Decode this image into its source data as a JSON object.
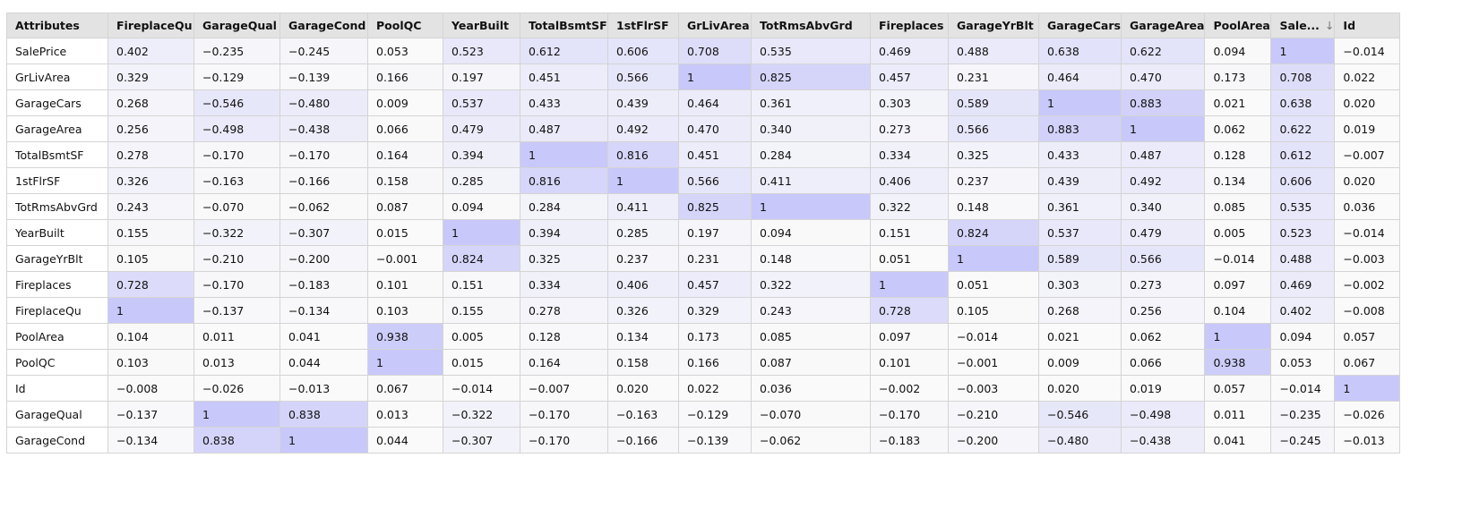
{
  "accent_color": "#c8c8fa",
  "sorted_column_index": 15,
  "sort_icon": "arrow-down-icon",
  "columns": [
    "Attributes",
    "FireplaceQu",
    "GarageQual",
    "GarageCond",
    "PoolQC",
    "YearBuilt",
    "TotalBsmtSF",
    "1stFlrSF",
    "GrLivArea",
    "TotRmsAbvGrd",
    "Fireplaces",
    "GarageYrBlt",
    "GarageCars",
    "GarageArea",
    "PoolArea",
    "Sale...",
    "Id"
  ],
  "sort_arrow_glyph": "↓",
  "rows": [
    {
      "label": "SalePrice",
      "values": [
        "0.402",
        "−0.235",
        "−0.245",
        "0.053",
        "0.523",
        "0.612",
        "0.606",
        "0.708",
        "0.535",
        "0.469",
        "0.488",
        "0.638",
        "0.622",
        "0.094",
        "1",
        "−0.014"
      ]
    },
    {
      "label": "GrLivArea",
      "values": [
        "0.329",
        "−0.129",
        "−0.139",
        "0.166",
        "0.197",
        "0.451",
        "0.566",
        "1",
        "0.825",
        "0.457",
        "0.231",
        "0.464",
        "0.470",
        "0.173",
        "0.708",
        "0.022"
      ]
    },
    {
      "label": "GarageCars",
      "values": [
        "0.268",
        "−0.546",
        "−0.480",
        "0.009",
        "0.537",
        "0.433",
        "0.439",
        "0.464",
        "0.361",
        "0.303",
        "0.589",
        "1",
        "0.883",
        "0.021",
        "0.638",
        "0.020"
      ]
    },
    {
      "label": "GarageArea",
      "values": [
        "0.256",
        "−0.498",
        "−0.438",
        "0.066",
        "0.479",
        "0.487",
        "0.492",
        "0.470",
        "0.340",
        "0.273",
        "0.566",
        "0.883",
        "1",
        "0.062",
        "0.622",
        "0.019"
      ]
    },
    {
      "label": "TotalBsmtSF",
      "values": [
        "0.278",
        "−0.170",
        "−0.170",
        "0.164",
        "0.394",
        "1",
        "0.816",
        "0.451",
        "0.284",
        "0.334",
        "0.325",
        "0.433",
        "0.487",
        "0.128",
        "0.612",
        "−0.007"
      ]
    },
    {
      "label": "1stFlrSF",
      "values": [
        "0.326",
        "−0.163",
        "−0.166",
        "0.158",
        "0.285",
        "0.816",
        "1",
        "0.566",
        "0.411",
        "0.406",
        "0.237",
        "0.439",
        "0.492",
        "0.134",
        "0.606",
        "0.020"
      ]
    },
    {
      "label": "TotRmsAbvGrd",
      "values": [
        "0.243",
        "−0.070",
        "−0.062",
        "0.087",
        "0.094",
        "0.284",
        "0.411",
        "0.825",
        "1",
        "0.322",
        "0.148",
        "0.361",
        "0.340",
        "0.085",
        "0.535",
        "0.036"
      ]
    },
    {
      "label": "YearBuilt",
      "values": [
        "0.155",
        "−0.322",
        "−0.307",
        "0.015",
        "1",
        "0.394",
        "0.285",
        "0.197",
        "0.094",
        "0.151",
        "0.824",
        "0.537",
        "0.479",
        "0.005",
        "0.523",
        "−0.014"
      ]
    },
    {
      "label": "GarageYrBlt",
      "values": [
        "0.105",
        "−0.210",
        "−0.200",
        "−0.001",
        "0.824",
        "0.325",
        "0.237",
        "0.231",
        "0.148",
        "0.051",
        "1",
        "0.589",
        "0.566",
        "−0.014",
        "0.488",
        "−0.003"
      ]
    },
    {
      "label": "Fireplaces",
      "values": [
        "0.728",
        "−0.170",
        "−0.183",
        "0.101",
        "0.151",
        "0.334",
        "0.406",
        "0.457",
        "0.322",
        "1",
        "0.051",
        "0.303",
        "0.273",
        "0.097",
        "0.469",
        "−0.002"
      ]
    },
    {
      "label": "FireplaceQu",
      "values": [
        "1",
        "−0.137",
        "−0.134",
        "0.103",
        "0.155",
        "0.278",
        "0.326",
        "0.329",
        "0.243",
        "0.728",
        "0.105",
        "0.268",
        "0.256",
        "0.104",
        "0.402",
        "−0.008"
      ]
    },
    {
      "label": "PoolArea",
      "values": [
        "0.104",
        "0.011",
        "0.041",
        "0.938",
        "0.005",
        "0.128",
        "0.134",
        "0.173",
        "0.085",
        "0.097",
        "−0.014",
        "0.021",
        "0.062",
        "1",
        "0.094",
        "0.057"
      ]
    },
    {
      "label": "PoolQC",
      "values": [
        "0.103",
        "0.013",
        "0.044",
        "1",
        "0.015",
        "0.164",
        "0.158",
        "0.166",
        "0.087",
        "0.101",
        "−0.001",
        "0.009",
        "0.066",
        "0.938",
        "0.053",
        "0.067"
      ]
    },
    {
      "label": "Id",
      "values": [
        "−0.008",
        "−0.026",
        "−0.013",
        "0.067",
        "−0.014",
        "−0.007",
        "0.020",
        "0.022",
        "0.036",
        "−0.002",
        "−0.003",
        "0.020",
        "0.019",
        "0.057",
        "−0.014",
        "1"
      ]
    },
    {
      "label": "GarageQual",
      "values": [
        "−0.137",
        "1",
        "0.838",
        "0.013",
        "−0.322",
        "−0.170",
        "−0.163",
        "−0.129",
        "−0.070",
        "−0.170",
        "−0.210",
        "−0.546",
        "−0.498",
        "0.011",
        "−0.235",
        "−0.026"
      ]
    },
    {
      "label": "GarageCond",
      "values": [
        "−0.134",
        "0.838",
        "1",
        "0.044",
        "−0.307",
        "−0.170",
        "−0.166",
        "−0.139",
        "−0.062",
        "−0.183",
        "−0.200",
        "−0.480",
        "−0.438",
        "0.041",
        "−0.245",
        "−0.013"
      ]
    }
  ]
}
